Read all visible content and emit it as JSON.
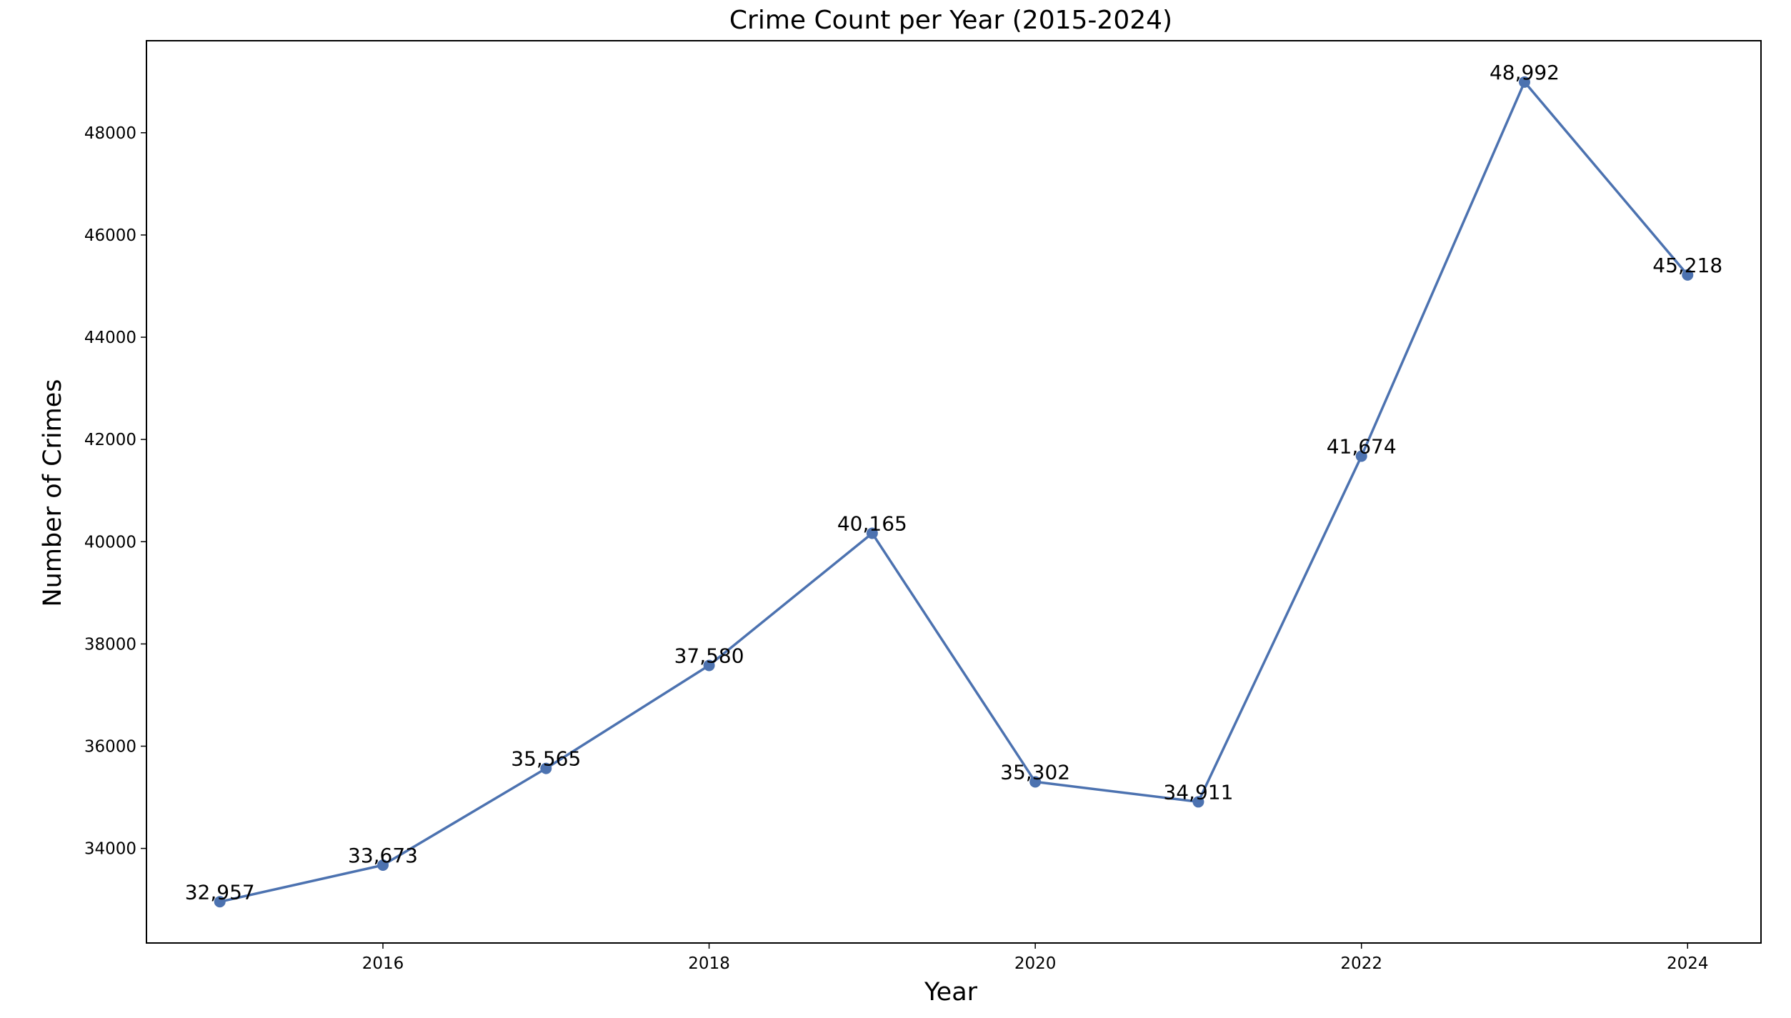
{
  "chart_data": {
    "type": "line",
    "title": "Crime Count per Year (2015-2024)",
    "xlabel": "Year",
    "ylabel": "Number of Crimes",
    "x": [
      2015,
      2016,
      2017,
      2018,
      2019,
      2020,
      2021,
      2022,
      2023,
      2024
    ],
    "series": [
      {
        "values": [
          32957,
          33673,
          35565,
          37580,
          40165,
          35302,
          34911,
          41674,
          48992,
          45218
        ],
        "data_labels": [
          "32,957",
          "33,673",
          "35,565",
          "37,580",
          "40,165",
          "35,302",
          "34,911",
          "41,674",
          "48,992",
          "45,218"
        ],
        "color": "#4c72b0",
        "marker": "circle"
      }
    ],
    "xlim": [
      2014.55,
      2024.45
    ],
    "ylim": [
      32150,
      49800
    ],
    "xticks": [
      2016,
      2018,
      2020,
      2022,
      2024
    ],
    "xtick_labels": [
      "2016",
      "2018",
      "2020",
      "2022",
      "2024"
    ],
    "yticks": [
      34000,
      36000,
      38000,
      40000,
      42000,
      44000,
      46000,
      48000
    ],
    "ytick_labels": [
      "34000",
      "36000",
      "38000",
      "40000",
      "42000",
      "44000",
      "46000",
      "48000"
    ],
    "grid": false,
    "legend": "none"
  }
}
